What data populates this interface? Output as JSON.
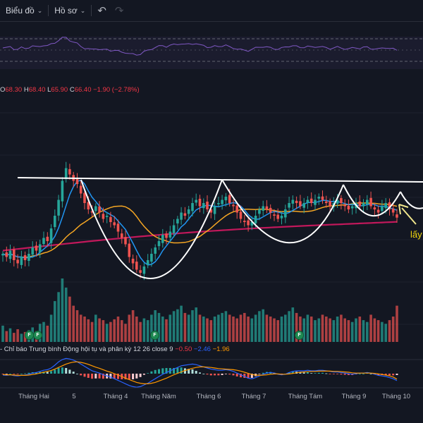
{
  "toolbar": {
    "chart_label": "Biểu đồ",
    "profile_label": "Hồ sơ",
    "undo_icon": "undo-icon",
    "redo_icon": "redo-icon"
  },
  "legend": {
    "o_key": "O",
    "o_val": "68.30",
    "h_key": "H",
    "h_val": "68.40",
    "l_key": "L",
    "l_val": "65.90",
    "c_key": "C",
    "c_val": "66.40",
    "change": "−1.90 (−2.78%)"
  },
  "macd_header": {
    "title": "- Chỉ báo Trung bình Động hội tụ và phân kỳ",
    "params": "12 26 close 9",
    "hist": "−0.50",
    "macd": "−2.46",
    "signal": "−1.96"
  },
  "annotation": "lấy",
  "dividend_marker": "F",
  "colors": {
    "background": "#131722",
    "up": "#26a69a",
    "down": "#ef5350",
    "ma_short": "#2196f3",
    "ma_mid": "#f5a623",
    "ma_long": "#c2185b",
    "rsi": "#7e57c2",
    "resistance": "#ffffff",
    "arrow": "#f0e68c"
  },
  "chart_data": {
    "type": "candlestick",
    "x_axis_labels": [
      "Tháng Hai",
      "5",
      "Tháng 4",
      "Tháng Năm",
      "Tháng 6",
      "Tháng 7",
      "Tháng Tám",
      "Tháng 9",
      "Tháng 10"
    ],
    "last_bar": {
      "open": 68.3,
      "high": 68.4,
      "low": 65.9,
      "close": 66.4,
      "change": -1.9,
      "change_pct": -2.78
    },
    "closes": [
      55,
      54,
      56,
      53,
      52,
      54,
      53,
      55,
      57,
      56,
      58,
      60,
      59,
      63,
      67,
      72,
      78,
      82,
      80,
      78,
      77,
      74,
      71,
      69,
      68,
      70,
      68,
      66,
      67,
      65,
      64,
      62,
      60,
      58,
      54,
      52,
      50,
      49,
      51,
      53,
      55,
      57,
      59,
      61,
      60,
      62,
      64,
      66,
      68,
      67,
      69,
      71,
      72,
      70,
      71,
      69,
      68,
      70,
      71,
      72,
      73,
      71,
      70,
      68,
      66,
      65,
      64,
      65,
      67,
      69,
      70,
      69,
      68,
      67,
      66,
      67,
      69,
      71,
      72,
      71,
      70,
      71,
      72,
      71,
      72,
      73,
      72,
      71,
      70,
      71,
      72,
      71,
      70,
      69,
      70,
      71,
      70,
      71,
      72,
      70,
      69,
      68,
      70,
      71,
      69,
      68,
      66.4
    ],
    "volumes": [
      18,
      12,
      15,
      10,
      14,
      9,
      11,
      13,
      16,
      12,
      20,
      22,
      18,
      30,
      45,
      55,
      70,
      60,
      50,
      40,
      35,
      30,
      28,
      25,
      22,
      30,
      26,
      24,
      20,
      22,
      25,
      28,
      24,
      20,
      30,
      35,
      28,
      22,
      26,
      24,
      30,
      35,
      32,
      28,
      25,
      30,
      34,
      36,
      40,
      32,
      30,
      35,
      38,
      30,
      28,
      26,
      24,
      28,
      30,
      32,
      34,
      30,
      28,
      26,
      30,
      32,
      28,
      26,
      30,
      34,
      36,
      30,
      28,
      26,
      24,
      28,
      30,
      34,
      38,
      32,
      28,
      26,
      30,
      28,
      24,
      26,
      30,
      28,
      26,
      24,
      28,
      30,
      26,
      24,
      22,
      26,
      28,
      24,
      22,
      30,
      26,
      24,
      22,
      20,
      24,
      28,
      40
    ],
    "macd": [
      -0.5,
      -0.6,
      -0.4,
      -0.7,
      -0.8,
      -0.6,
      -0.5,
      -0.2,
      0.2,
      0.4,
      0.8,
      1.2,
      1.4,
      2.0,
      3.0,
      4.2,
      5.0,
      5.4,
      5.2,
      4.8,
      4.2,
      3.4,
      2.6,
      1.8,
      1.0,
      0.6,
      0.2,
      -0.4,
      -0.8,
      -1.2,
      -1.8,
      -2.4,
      -3.0,
      -3.6,
      -4.2,
      -4.6,
      -4.8,
      -4.6,
      -4.0,
      -3.4,
      -2.6,
      -1.8,
      -1.0,
      -0.2,
      0.4,
      1.0,
      1.6,
      2.2,
      2.8,
      3.0,
      3.2,
      3.4,
      3.2,
      2.8,
      2.4,
      2.0,
      1.6,
      1.4,
      1.2,
      1.2,
      1.4,
      1.2,
      0.8,
      0.2,
      -0.4,
      -1.0,
      -1.6,
      -1.8,
      -1.4,
      -0.8,
      -0.2,
      0.2,
      0.4,
      0.2,
      -0.2,
      -0.4,
      -0.2,
      0.4,
      0.8,
      1.0,
      1.0,
      1.0,
      1.2,
      1.0,
      1.0,
      1.2,
      1.2,
      1.0,
      0.8,
      0.6,
      0.6,
      0.4,
      0.2,
      0.0,
      -0.2,
      0.0,
      0.2,
      0.2,
      0.4,
      0.2,
      -0.2,
      -0.6,
      -0.8,
      -1.0,
      -1.4,
      -1.8,
      -2.46
    ],
    "signal": [
      -0.3,
      -0.4,
      -0.4,
      -0.5,
      -0.6,
      -0.6,
      -0.6,
      -0.5,
      -0.3,
      -0.1,
      0.2,
      0.5,
      0.8,
      1.1,
      1.6,
      2.2,
      2.8,
      3.4,
      3.8,
      4.1,
      4.2,
      4.0,
      3.7,
      3.3,
      2.8,
      2.3,
      1.9,
      1.4,
      0.9,
      0.5,
      0.0,
      -0.5,
      -1.0,
      -1.6,
      -2.1,
      -2.6,
      -3.1,
      -3.4,
      -3.6,
      -3.6,
      -3.4,
      -3.1,
      -2.6,
      -2.1,
      -1.6,
      -1.0,
      -0.4,
      0.1,
      0.6,
      1.1,
      1.5,
      1.9,
      2.2,
      2.4,
      2.4,
      2.3,
      2.2,
      2.0,
      1.8,
      1.7,
      1.6,
      1.5,
      1.4,
      1.2,
      0.9,
      0.5,
      0.1,
      -0.3,
      -0.5,
      -0.6,
      -0.5,
      -0.4,
      -0.2,
      -0.1,
      -0.1,
      -0.2,
      -0.2,
      -0.1,
      0.1,
      0.3,
      0.5,
      0.6,
      0.7,
      0.8,
      0.8,
      0.9,
      0.9,
      0.9,
      0.9,
      0.8,
      0.8,
      0.7,
      0.6,
      0.5,
      0.3,
      0.2,
      0.2,
      0.2,
      0.2,
      0.2,
      0.1,
      -0.1,
      -0.3,
      -0.5,
      -0.8,
      -1.2,
      -1.96
    ]
  }
}
